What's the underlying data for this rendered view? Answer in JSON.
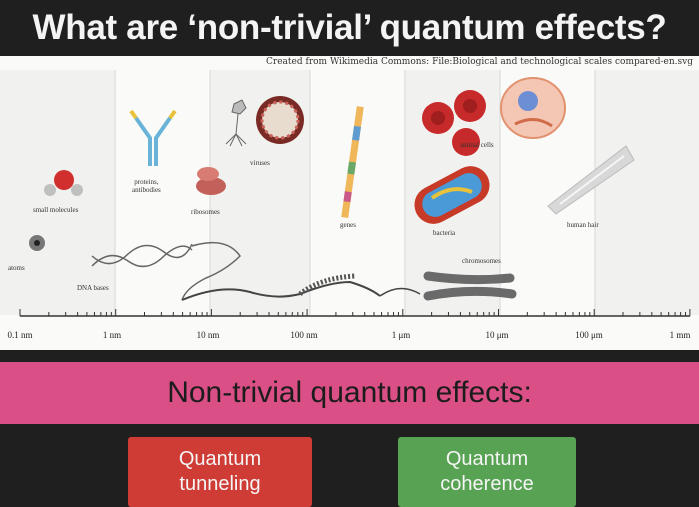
{
  "title": "What are ‘non-trivial’ quantum effects?",
  "figure": {
    "credit": "Created from Wikimedia Commons: File:Biological and technological scales compared-en.svg",
    "labels": {
      "atoms": "atoms",
      "small_molecules": "small molecules",
      "dna_bases": "DNA bases",
      "proteins": "proteins,\nantibodies",
      "ribosomes": "ribosomes",
      "viruses": "viruses",
      "genes": "genes",
      "animal_cells": "animal cells",
      "bacteria": "bacteria",
      "chromosomes": "chromosomes",
      "human_hair": "human hair"
    },
    "axis_ticks": [
      "0.1 nm",
      "1 nm",
      "10 nm",
      "100 nm",
      "1 μm",
      "10 μm",
      "100 μm",
      "1 mm"
    ]
  },
  "banner": {
    "text": "Non-trivial quantum effects:"
  },
  "buttons": {
    "tunneling": "Quantum\ntunneling",
    "coherence": "Quantum\ncoherence"
  }
}
